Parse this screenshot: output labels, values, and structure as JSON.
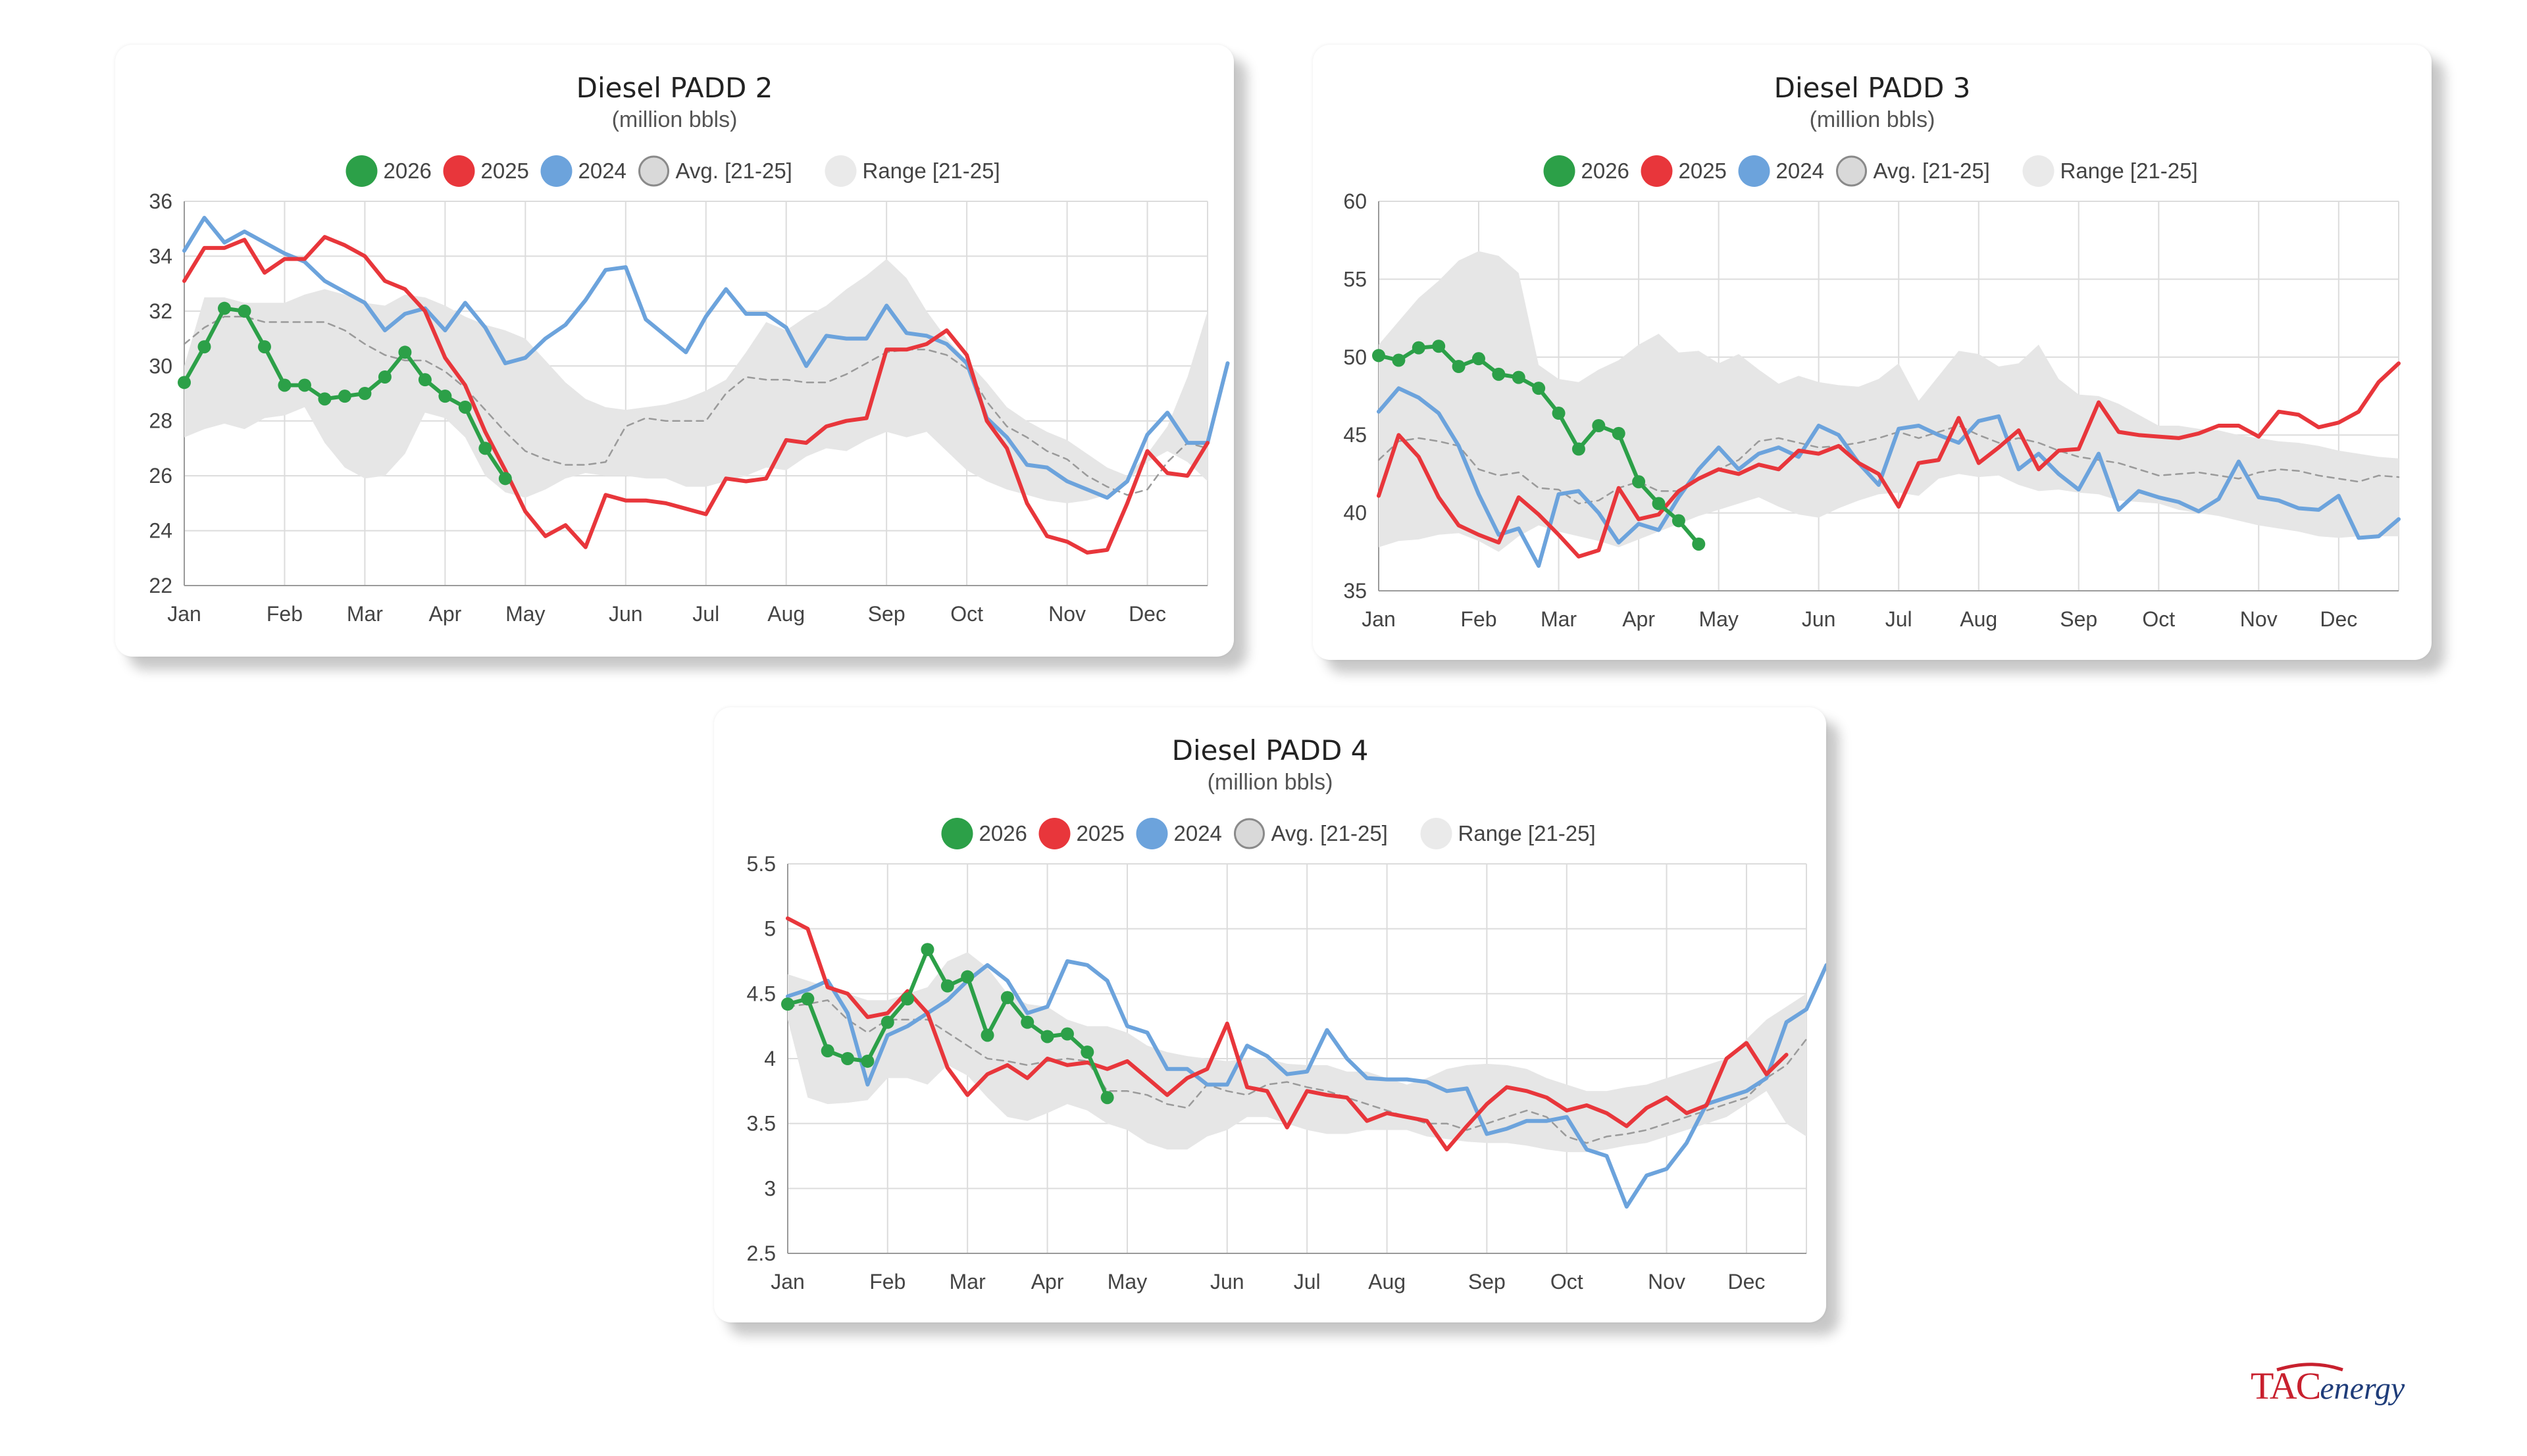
{
  "brand": {
    "logo_text": "TACenergy"
  },
  "legend": [
    {
      "label": "2026",
      "color": "#2ca048",
      "kind": "dot"
    },
    {
      "label": "2025",
      "color": "#e8363b",
      "kind": "dot"
    },
    {
      "label": "2024",
      "color": "#6ca3dc",
      "kind": "dot"
    },
    {
      "label": "Avg. [21-25]",
      "color": "#d9d9d9",
      "kind": "ring"
    },
    {
      "label": "Range [21-25]",
      "color": "#eaeaea",
      "kind": "dot"
    }
  ],
  "colors": {
    "y2026": "#2ca048",
    "y2025": "#e8363b",
    "y2024": "#6ca3dc",
    "avg": "#9a9a9a",
    "range": "#e6e6e6",
    "grid": "#dcdcdc"
  },
  "chart_data": [
    {
      "type": "line",
      "title": "Diesel PADD 2",
      "subtitle": "(million bbls)",
      "x_unit": "week of year",
      "x_ticks": [
        "Jan",
        "Feb",
        "Mar",
        "Apr",
        "May",
        "Jun",
        "Jul",
        "Aug",
        "Sep",
        "Oct",
        "Nov",
        "Dec"
      ],
      "x_tick_weeks": [
        1,
        6,
        10,
        14,
        18,
        23,
        27,
        31,
        36,
        40,
        45,
        49
      ],
      "xlim": [
        1,
        52
      ],
      "ylim": [
        22,
        36
      ],
      "y_ticks": [
        22,
        24,
        26,
        28,
        30,
        32,
        34,
        36
      ],
      "grid": true,
      "legend_position": "top",
      "range_upper": [
        30,
        32.5,
        32.5,
        32.3,
        32.3,
        32.3,
        32.6,
        32.8,
        32.6,
        32.3,
        32.2,
        32.6,
        32.5,
        32.2,
        31.8,
        31.5,
        31.3,
        31.0,
        30.2,
        29.4,
        28.8,
        28.5,
        28.4,
        28.5,
        28.6,
        28.8,
        29.1,
        29.5,
        30.5,
        31.6,
        31.3,
        31.8,
        32.2,
        32.8,
        33.3,
        33.9,
        33.2,
        32.0,
        31.0,
        30.2,
        29.4,
        28.5,
        28.0,
        27.6,
        27.3,
        26.8,
        26.3,
        26.0,
        26.8,
        27.8,
        29.6,
        32.0
      ],
      "range_lower": [
        27.4,
        27.7,
        27.9,
        27.7,
        28.1,
        28.2,
        28.5,
        27.2,
        26.3,
        25.9,
        26.0,
        26.8,
        28.3,
        28.1,
        27.4,
        26.0,
        25.4,
        25.2,
        25.5,
        25.9,
        26.1,
        26.0,
        26.0,
        25.9,
        25.9,
        25.6,
        25.6,
        25.8,
        26.0,
        26.3,
        26.2,
        26.7,
        27.0,
        26.9,
        27.3,
        27.6,
        27.4,
        27.6,
        26.9,
        26.2,
        25.8,
        25.5,
        25.3,
        25.1,
        25.0,
        25.1,
        25.3,
        25.8,
        26.5,
        26.9,
        26.5,
        25.8
      ],
      "series": [
        {
          "name": "Avg. [21-25]",
          "color": "#9a9a9a",
          "dashed": true,
          "values": [
            30.8,
            31.4,
            31.8,
            31.8,
            31.6,
            31.6,
            31.6,
            31.6,
            31.3,
            30.8,
            30.4,
            30.2,
            30.2,
            29.8,
            29.2,
            28.4,
            27.6,
            26.9,
            26.6,
            26.4,
            26.4,
            26.5,
            27.8,
            28.1,
            28.0,
            28.0,
            28.0,
            29.0,
            29.6,
            29.5,
            29.5,
            29.4,
            29.4,
            29.7,
            30.1,
            30.5,
            30.6,
            30.6,
            30.4,
            29.9,
            28.7,
            27.8,
            27.4,
            26.9,
            26.6,
            26.0,
            25.6,
            25.3,
            25.5,
            26.5,
            27.2,
            27.0
          ]
        },
        {
          "name": "2024",
          "color": "#6ca3dc",
          "values": [
            34.2,
            35.4,
            34.5,
            34.9,
            34.5,
            34.1,
            33.8,
            33.1,
            32.7,
            32.3,
            31.3,
            31.9,
            32.1,
            31.3,
            32.3,
            31.4,
            30.1,
            30.3,
            31.0,
            31.5,
            32.4,
            33.5,
            33.6,
            31.7,
            31.1,
            30.5,
            31.8,
            32.8,
            31.9,
            31.9,
            31.4,
            30.0,
            31.1,
            31.0,
            31.0,
            32.2,
            31.2,
            31.1,
            30.8,
            30.1,
            28.1,
            27.4,
            26.4,
            26.3,
            25.8,
            25.5,
            25.2,
            25.8,
            27.5,
            28.3,
            27.2,
            27.2,
            30.1
          ]
        },
        {
          "name": "2025",
          "color": "#e8363b",
          "values": [
            33.1,
            34.3,
            34.3,
            34.6,
            33.4,
            33.9,
            33.9,
            34.7,
            34.4,
            34.0,
            33.1,
            32.8,
            32.0,
            30.3,
            29.3,
            27.6,
            26.2,
            24.7,
            23.8,
            24.2,
            23.4,
            25.3,
            25.1,
            25.1,
            25.0,
            24.8,
            24.6,
            25.9,
            25.8,
            25.9,
            27.3,
            27.2,
            27.8,
            28.0,
            28.1,
            30.6,
            30.6,
            30.8,
            31.3,
            30.4,
            28.0,
            27.0,
            25.0,
            23.8,
            23.6,
            23.2,
            23.3,
            25.0,
            26.9,
            26.1,
            26.0,
            27.2
          ]
        },
        {
          "name": "2026",
          "color": "#2ca048",
          "markers": true,
          "values": [
            29.4,
            30.7,
            32.1,
            32.0,
            30.7,
            29.3,
            29.3,
            28.8,
            28.9,
            29.0,
            29.6,
            30.5,
            29.5,
            28.9,
            28.5,
            27.0,
            25.9
          ]
        }
      ]
    },
    {
      "type": "line",
      "title": "Diesel PADD 3",
      "subtitle": "(million bbls)",
      "x_unit": "week of year",
      "x_ticks": [
        "Jan",
        "Feb",
        "Mar",
        "Apr",
        "May",
        "Jun",
        "Jul",
        "Aug",
        "Sep",
        "Oct",
        "Nov",
        "Dec"
      ],
      "x_tick_weeks": [
        1,
        6,
        10,
        14,
        18,
        23,
        27,
        31,
        36,
        40,
        45,
        49
      ],
      "xlim": [
        1,
        52
      ],
      "ylim": [
        35,
        60
      ],
      "y_ticks": [
        35,
        40,
        45,
        50,
        55,
        60
      ],
      "grid": true,
      "legend_position": "top",
      "range_upper": [
        50.8,
        52.3,
        53.8,
        54.9,
        56.2,
        56.8,
        56.5,
        55.4,
        49.5,
        48.6,
        48.4,
        49.2,
        49.8,
        50.8,
        51.5,
        50.3,
        50.4,
        49.6,
        50.2,
        49.2,
        48.3,
        48.8,
        48.4,
        48.2,
        48.1,
        48.6,
        49.6,
        47.2,
        48.8,
        50.4,
        50.2,
        49.4,
        49.6,
        50.8,
        48.6,
        47.6,
        47.5,
        47.0,
        46.3,
        45.6,
        45.6,
        45.4,
        45.3,
        45.0,
        44.8,
        44.6,
        44.5,
        44.3,
        44.0,
        43.8,
        43.6,
        43.5
      ],
      "range_lower": [
        37.8,
        38.2,
        38.3,
        38.6,
        38.7,
        38.2,
        37.5,
        38.5,
        39.2,
        38.8,
        38.5,
        38.2,
        37.8,
        38.3,
        38.8,
        39.3,
        39.8,
        40.2,
        40.6,
        41.0,
        40.4,
        39.9,
        39.7,
        40.3,
        40.8,
        41.2,
        41.3,
        41.1,
        42.2,
        42.5,
        42.3,
        42.4,
        41.8,
        41.4,
        41.5,
        41.3,
        41.2,
        40.8,
        40.7,
        40.6,
        40.2,
        40.0,
        39.8,
        39.5,
        39.2,
        39.0,
        38.8,
        38.5,
        38.4,
        38.5,
        38.5,
        38.5
      ],
      "series": [
        {
          "name": "Avg. [21-25]",
          "color": "#9a9a9a",
          "dashed": true,
          "values": [
            43.4,
            44.6,
            44.8,
            44.6,
            44.3,
            42.8,
            42.4,
            42.6,
            41.6,
            41.5,
            40.6,
            40.8,
            41.6,
            42.0,
            41.4,
            41.4,
            42.2,
            42.8,
            43.4,
            44.6,
            44.8,
            44.5,
            44.2,
            44.3,
            44.5,
            44.8,
            45.2,
            44.8,
            45.2,
            45.6,
            45.0,
            44.5,
            44.8,
            44.5,
            44.0,
            43.6,
            43.4,
            43.2,
            42.8,
            42.4,
            42.5,
            42.6,
            42.4,
            42.2,
            42.6,
            42.8,
            42.7,
            42.4,
            42.2,
            42.0,
            42.4,
            42.3
          ]
        },
        {
          "name": "2024",
          "color": "#6ca3dc",
          "values": [
            46.5,
            48.0,
            47.4,
            46.4,
            44.3,
            41.2,
            38.6,
            39.0,
            36.6,
            41.2,
            41.4,
            40.0,
            38.1,
            39.3,
            38.9,
            41.0,
            42.8,
            44.2,
            42.8,
            43.8,
            44.2,
            43.6,
            45.6,
            45.0,
            43.2,
            41.8,
            45.4,
            45.6,
            45.0,
            44.5,
            45.9,
            46.2,
            42.8,
            43.8,
            42.5,
            41.5,
            43.8,
            40.2,
            41.4,
            41.0,
            40.7,
            40.1,
            40.9,
            43.3,
            41.0,
            40.8,
            40.3,
            40.2,
            41.1,
            38.4,
            38.5,
            39.6
          ]
        },
        {
          "name": "2025",
          "color": "#e8363b",
          "values": [
            41.1,
            45.0,
            43.6,
            41.0,
            39.2,
            38.6,
            38.1,
            41.0,
            39.9,
            38.6,
            37.2,
            37.6,
            41.6,
            39.6,
            39.9,
            41.4,
            42.2,
            42.8,
            42.5,
            43.1,
            42.8,
            44.0,
            43.8,
            44.3,
            43.2,
            42.5,
            40.4,
            43.2,
            43.4,
            46.1,
            43.2,
            44.2,
            45.3,
            42.8,
            44.0,
            44.1,
            47.1,
            45.2,
            45.0,
            44.9,
            44.8,
            45.1,
            45.6,
            45.6,
            44.9,
            46.5,
            46.3,
            45.5,
            45.8,
            46.5,
            48.4,
            49.6
          ]
        },
        {
          "name": "2026",
          "color": "#2ca048",
          "markers": true,
          "values": [
            50.1,
            49.8,
            50.6,
            50.7,
            49.4,
            49.9,
            48.9,
            48.7,
            48.0,
            46.4,
            44.1,
            45.6,
            45.1,
            42.0,
            40.6,
            39.5,
            38.0
          ]
        }
      ]
    },
    {
      "type": "line",
      "title": "Diesel PADD 4",
      "subtitle": "(million bbls)",
      "x_unit": "week of year",
      "x_ticks": [
        "Jan",
        "Feb",
        "Mar",
        "Apr",
        "May",
        "Jun",
        "Jul",
        "Aug",
        "Sep",
        "Oct",
        "Nov",
        "Dec"
      ],
      "x_tick_weeks": [
        1,
        6,
        10,
        14,
        18,
        23,
        27,
        31,
        36,
        40,
        45,
        49
      ],
      "xlim": [
        1,
        52
      ],
      "ylim": [
        2.5,
        5.5
      ],
      "y_ticks": [
        "2.5",
        "3",
        "3.5",
        "4",
        "4.5",
        "5",
        "5.5"
      ],
      "grid": true,
      "legend_position": "top",
      "range_upper": [
        4.65,
        4.6,
        4.55,
        4.5,
        4.45,
        4.45,
        4.5,
        4.55,
        4.75,
        4.82,
        4.7,
        4.5,
        4.42,
        4.4,
        4.3,
        4.25,
        4.25,
        4.2,
        4.1,
        4.05,
        4.02,
        4.0,
        3.98,
        4.0,
        4.0,
        3.96,
        3.95,
        3.95,
        3.9,
        3.9,
        3.85,
        3.8,
        3.85,
        3.92,
        3.95,
        3.96,
        3.95,
        3.92,
        3.85,
        3.8,
        3.75,
        3.75,
        3.78,
        3.8,
        3.85,
        3.9,
        3.95,
        4.0,
        4.15,
        4.3,
        4.4,
        4.5
      ],
      "range_lower": [
        4.3,
        3.7,
        3.65,
        3.66,
        3.68,
        3.85,
        3.85,
        3.8,
        3.95,
        3.87,
        3.7,
        3.55,
        3.52,
        3.58,
        3.65,
        3.6,
        3.5,
        3.45,
        3.35,
        3.3,
        3.3,
        3.4,
        3.45,
        3.55,
        3.55,
        3.5,
        3.45,
        3.42,
        3.42,
        3.45,
        3.45,
        3.45,
        3.4,
        3.38,
        3.36,
        3.35,
        3.35,
        3.33,
        3.3,
        3.28,
        3.28,
        3.3,
        3.33,
        3.35,
        3.4,
        3.45,
        3.5,
        3.55,
        3.65,
        3.75,
        3.5,
        3.4
      ],
      "series": [
        {
          "name": "Avg. [21-25]",
          "color": "#9a9a9a",
          "dashed": true,
          "values": [
            4.4,
            4.42,
            4.45,
            4.3,
            4.2,
            4.3,
            4.3,
            4.3,
            4.2,
            4.1,
            4.0,
            3.98,
            3.95,
            3.98,
            4.0,
            3.98,
            3.75,
            3.75,
            3.72,
            3.65,
            3.62,
            3.8,
            3.75,
            3.72,
            3.8,
            3.82,
            3.78,
            3.75,
            3.7,
            3.65,
            3.6,
            3.55,
            3.5,
            3.5,
            3.45,
            3.5,
            3.55,
            3.6,
            3.55,
            3.4,
            3.35,
            3.4,
            3.42,
            3.45,
            3.5,
            3.55,
            3.6,
            3.65,
            3.7,
            3.85,
            3.95,
            4.15
          ]
        },
        {
          "name": "2024",
          "color": "#6ca3dc",
          "values": [
            4.48,
            4.53,
            4.6,
            4.35,
            3.8,
            4.18,
            4.25,
            4.35,
            4.45,
            4.6,
            4.72,
            4.6,
            4.35,
            4.4,
            4.75,
            4.72,
            4.6,
            4.25,
            4.2,
            3.92,
            3.92,
            3.8,
            3.8,
            4.1,
            4.02,
            3.88,
            3.9,
            4.22,
            4.0,
            3.85,
            3.84,
            3.84,
            3.82,
            3.75,
            3.77,
            3.42,
            3.46,
            3.52,
            3.52,
            3.55,
            3.3,
            3.25,
            2.86,
            3.1,
            3.15,
            3.35,
            3.65,
            3.7,
            3.75,
            3.85,
            4.28,
            4.38,
            4.72
          ]
        },
        {
          "name": "2025",
          "color": "#e8363b",
          "values": [
            5.08,
            5.0,
            4.55,
            4.5,
            4.32,
            4.35,
            4.52,
            4.35,
            3.93,
            3.72,
            3.88,
            3.95,
            3.85,
            4.0,
            3.95,
            3.97,
            3.92,
            3.98,
            3.85,
            3.72,
            3.85,
            3.92,
            4.27,
            3.78,
            3.75,
            3.47,
            3.75,
            3.72,
            3.7,
            3.52,
            3.58,
            3.55,
            3.52,
            3.3,
            3.48,
            3.65,
            3.78,
            3.75,
            3.7,
            3.6,
            3.64,
            3.58,
            3.48,
            3.62,
            3.7,
            3.58,
            3.64,
            4.0,
            4.12,
            3.88,
            4.03
          ]
        },
        {
          "name": "2026",
          "color": "#2ca048",
          "markers": true,
          "values": [
            4.42,
            4.46,
            4.06,
            4.0,
            3.98,
            4.28,
            4.46,
            4.84,
            4.56,
            4.63,
            4.18,
            4.47,
            4.28,
            4.17,
            4.19,
            4.05,
            3.7
          ]
        }
      ]
    }
  ]
}
